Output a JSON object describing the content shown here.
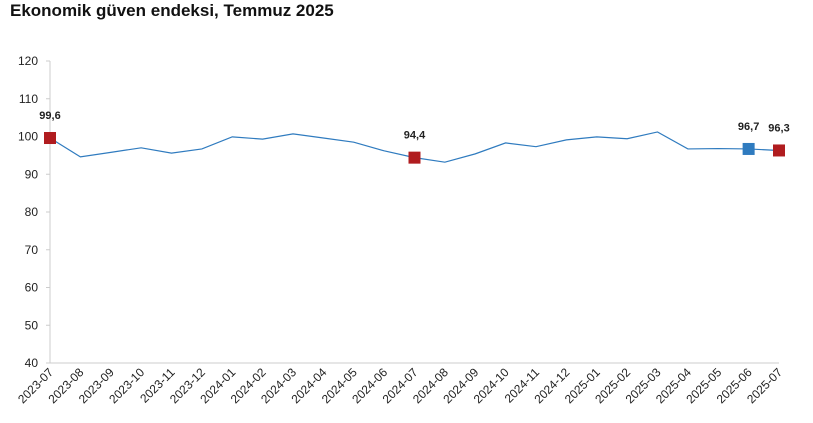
{
  "chart_data": {
    "type": "line",
    "title": "Ekonomik güven endeksi, Temmuz 2025",
    "categories": [
      "2023-07",
      "2023-08",
      "2023-09",
      "2023-10",
      "2023-11",
      "2023-12",
      "2024-01",
      "2024-02",
      "2024-03",
      "2024-04",
      "2024-05",
      "2024-06",
      "2024-07",
      "2024-08",
      "2024-09",
      "2024-10",
      "2024-11",
      "2024-12",
      "2025-01",
      "2025-02",
      "2025-03",
      "2025-04",
      "2025-05",
      "2025-06",
      "2025-07"
    ],
    "series": [
      {
        "color": "#2f7bbf",
        "values": [
          99.6,
          94.6,
          95.8,
          97.0,
          95.6,
          96.7,
          99.9,
          99.3,
          100.7,
          99.6,
          98.5,
          96.2,
          94.4,
          93.2,
          95.4,
          98.3,
          97.3,
          99.1,
          99.9,
          99.4,
          101.2,
          96.7,
          96.8,
          96.7,
          96.3
        ],
        "value_labels": [
          "99,6",
          null,
          null,
          null,
          null,
          null,
          null,
          null,
          null,
          null,
          null,
          null,
          "94,4",
          null,
          null,
          null,
          null,
          null,
          null,
          null,
          null,
          null,
          null,
          "96,7",
          "96,3"
        ],
        "marker_colors": [
          "#b01c1f",
          null,
          null,
          null,
          null,
          null,
          null,
          null,
          null,
          null,
          null,
          null,
          "#b01c1f",
          null,
          null,
          null,
          null,
          null,
          null,
          null,
          null,
          null,
          null,
          "#2f7bbf",
          "#b01c1f"
        ]
      }
    ],
    "ylim": [
      40,
      120
    ],
    "yticks": [
      40,
      50,
      60,
      70,
      80,
      90,
      100,
      110,
      120
    ],
    "grid": false
  }
}
